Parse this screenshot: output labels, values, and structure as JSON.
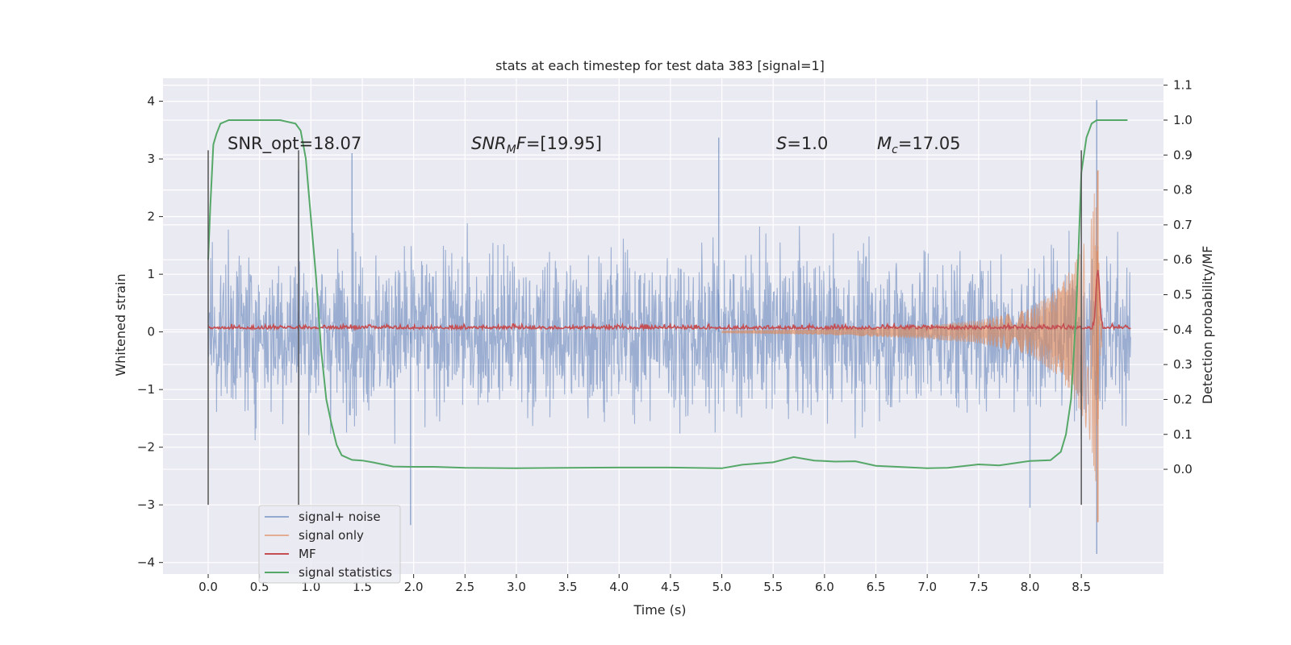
{
  "chart_data": {
    "type": "line",
    "title": "stats at each timestep for test data 383 [signal=1]",
    "xlabel": "Time (s)",
    "ylabel": "Whitened strain",
    "y2label": "Detection probability/MF",
    "xlim": [
      -0.44,
      9.3
    ],
    "ylim": [
      -4.2,
      4.4
    ],
    "y2lim": [
      -0.3,
      1.12
    ],
    "x_ticks": [
      0.0,
      0.5,
      1.0,
      1.5,
      2.0,
      2.5,
      3.0,
      3.5,
      4.0,
      4.5,
      5.0,
      5.5,
      6.0,
      6.5,
      7.0,
      7.5,
      8.0,
      8.5
    ],
    "x_tick_labels": [
      "0.0",
      "0.5",
      "1.0",
      "1.5",
      "2.0",
      "2.5",
      "3.0",
      "3.5",
      "4.0",
      "4.5",
      "5.0",
      "5.5",
      "6.0",
      "6.5",
      "7.0",
      "7.5",
      "8.0",
      "8.5"
    ],
    "y_ticks": [
      4,
      3,
      2,
      1,
      0,
      -1,
      -2,
      -3,
      -4
    ],
    "y_tick_labels": [
      "4",
      "3",
      "2",
      "1",
      "0",
      "−1",
      "−2",
      "−3",
      "−4"
    ],
    "y2_ticks": [
      1.1,
      1.0,
      0.9,
      0.8,
      0.7,
      0.6,
      0.5,
      0.4,
      0.3,
      0.2,
      0.1,
      0.0
    ],
    "y2_tick_labels": [
      "1.1",
      "1.0",
      "0.9",
      "0.8",
      "0.7",
      "0.6",
      "0.5",
      "0.4",
      "0.3",
      "0.2",
      "0.1",
      "0.0"
    ],
    "grid": true,
    "legend_position": "lower-left",
    "colors": {
      "background": "#eaeaf2",
      "grid": "#ffffff",
      "signal_noise": "#4c72b0",
      "signal_only": "#dd8452",
      "mf": "#c44e52",
      "statistics": "#55a868",
      "vline": "#555555"
    },
    "annotations": {
      "snr_opt": "SNR_opt=18.07",
      "snr_mf_main": "SNR",
      "snr_mf_sub": "M",
      "snr_mf_tail": "F=[19.95]",
      "s_main": "S",
      "s_tail": "=1.0",
      "mc_main": "M",
      "mc_sub": "c",
      "mc_tail": "=17.05"
    },
    "vertical_lines": [
      {
        "x": 0.0,
        "y0": -3.0,
        "y1": 3.15
      },
      {
        "x": 0.88,
        "y0": -3.0,
        "y1": 3.15
      },
      {
        "x": 8.5,
        "y0": -3.0,
        "y1": 3.15
      }
    ],
    "series": [
      {
        "name": "signal+ noise",
        "axis": "left",
        "style": "noise-band",
        "time_range": [
          0.0,
          8.98
        ],
        "typical_amplitude": 1.3,
        "envelope": [
          [
            0.0,
            1.5
          ],
          [
            0.5,
            2.2
          ],
          [
            1.0,
            2.4
          ],
          [
            2.0,
            2.3
          ],
          [
            3.0,
            2.4
          ],
          [
            4.0,
            2.4
          ],
          [
            5.0,
            3.35
          ],
          [
            6.0,
            2.6
          ],
          [
            7.0,
            2.4
          ],
          [
            8.0,
            2.5
          ],
          [
            8.6,
            4.0
          ],
          [
            8.98,
            1.4
          ]
        ],
        "notable_peaks": [
          [
            0.88,
            2.8
          ],
          [
            1.4,
            3.1
          ],
          [
            4.97,
            3.37
          ],
          [
            8.65,
            4.02
          ],
          [
            1.97,
            -3.35
          ],
          [
            8.65,
            -3.85
          ],
          [
            8.0,
            -3.05
          ]
        ]
      },
      {
        "name": "signal only",
        "axis": "left",
        "style": "chirp",
        "time_range": [
          5.0,
          8.7
        ],
        "envelope": [
          [
            5.0,
            0.02
          ],
          [
            6.0,
            0.05
          ],
          [
            7.0,
            0.12
          ],
          [
            7.5,
            0.2
          ],
          [
            8.0,
            0.4
          ],
          [
            8.3,
            0.8
          ],
          [
            8.5,
            1.4
          ],
          [
            8.6,
            2.0
          ],
          [
            8.65,
            2.8
          ],
          [
            8.68,
            0.6
          ],
          [
            8.72,
            0.0
          ]
        ]
      },
      {
        "name": "MF",
        "axis": "left",
        "style": "low-noise",
        "baseline": 0.05,
        "time_range": [
          0.0,
          8.98
        ],
        "peak": [
          8.66,
          1.0
        ]
      },
      {
        "name": "signal statistics",
        "axis": "right",
        "x": [
          0.0,
          0.02,
          0.05,
          0.08,
          0.12,
          0.2,
          0.3,
          0.5,
          0.7,
          0.85,
          0.9,
          0.95,
          1.0,
          1.05,
          1.1,
          1.15,
          1.2,
          1.25,
          1.3,
          1.4,
          1.5,
          1.6,
          1.8,
          2.0,
          2.2,
          2.5,
          3.0,
          3.5,
          4.0,
          4.5,
          5.0,
          5.2,
          5.5,
          5.7,
          5.9,
          6.1,
          6.3,
          6.5,
          7.0,
          7.2,
          7.5,
          7.7,
          8.0,
          8.2,
          8.3,
          8.35,
          8.4,
          8.45,
          8.5,
          8.55,
          8.6,
          8.65,
          8.7,
          8.8,
          8.95
        ],
        "y": [
          0.6,
          0.75,
          0.93,
          0.96,
          0.99,
          1.0,
          1.0,
          1.0,
          1.0,
          0.99,
          0.97,
          0.89,
          0.72,
          0.55,
          0.34,
          0.2,
          0.13,
          0.07,
          0.04,
          0.027,
          0.025,
          0.02,
          0.008,
          0.007,
          0.007,
          0.004,
          0.003,
          0.004,
          0.005,
          0.005,
          0.003,
          0.013,
          0.02,
          0.035,
          0.025,
          0.022,
          0.023,
          0.01,
          0.003,
          0.004,
          0.014,
          0.011,
          0.024,
          0.026,
          0.05,
          0.1,
          0.2,
          0.45,
          0.85,
          0.95,
          0.99,
          1.0,
          1.0,
          1.0,
          1.0
        ]
      }
    ],
    "legend": [
      "signal+ noise",
      "signal only",
      "MF",
      "signal statistics"
    ]
  }
}
